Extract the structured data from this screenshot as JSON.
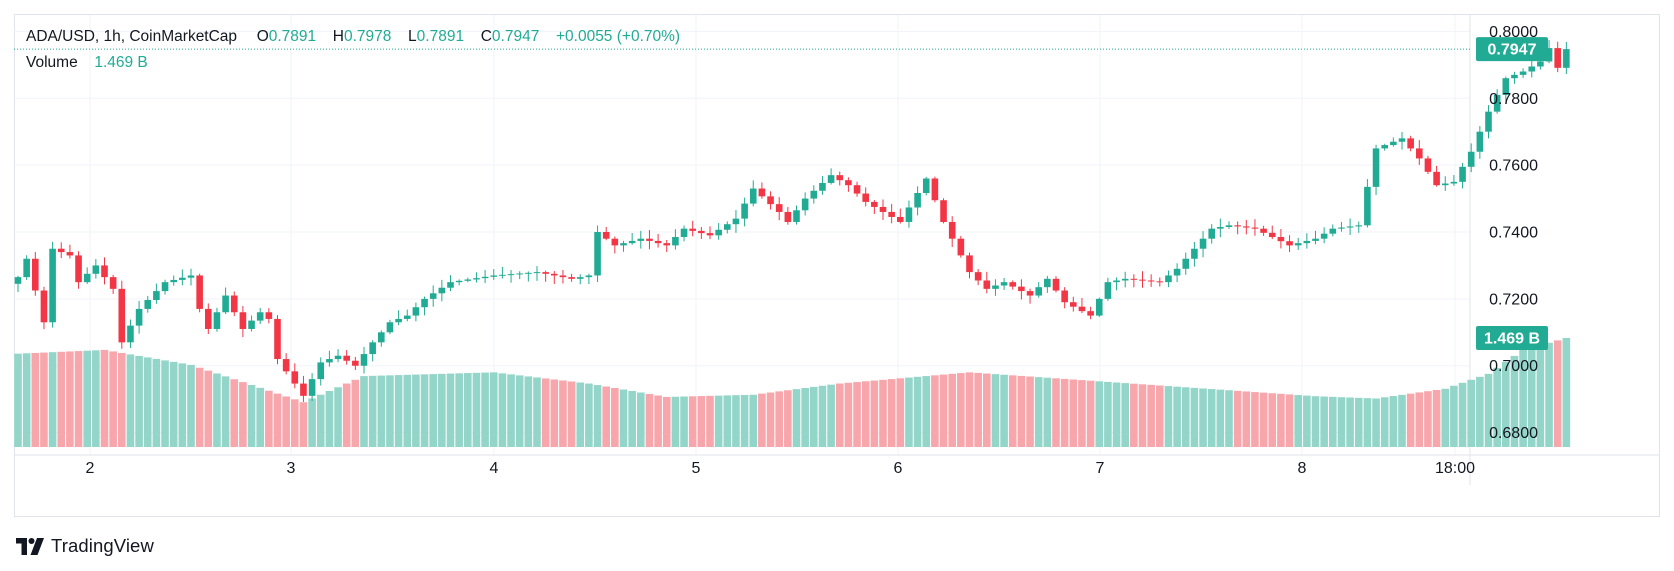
{
  "legend": {
    "symbol": "ADA/USD, 1h, CoinMarketCap",
    "o_label": "O",
    "o_value": "0.7891",
    "h_label": "H",
    "h_value": "0.7978",
    "l_label": "L",
    "l_value": "0.7891",
    "c_label": "C",
    "c_value": "0.7947",
    "change": "+0.0055 (+0.70%)",
    "volume_label": "Volume",
    "volume_value": "1.469 B"
  },
  "colors": {
    "up": "#22ab94",
    "down": "#f23645",
    "vol_up": "#94d5c9",
    "vol_down": "#f7a6ac",
    "grid": "#f0f3fa"
  },
  "brand": {
    "name": "TradingView"
  },
  "chart_data": {
    "type": "candlestick",
    "timeframe": "1h",
    "y_ticks": [
      "0.8000",
      "0.7800",
      "0.7600",
      "0.7400",
      "0.7200",
      "0.7000",
      "0.6800"
    ],
    "ylim": [
      0.6757,
      0.8049
    ],
    "x_ticks": [
      "2",
      "3",
      "4",
      "5",
      "6",
      "7",
      "8",
      "18:00"
    ],
    "last_price_label": "0.7947",
    "last_volume_label": "1.469 B",
    "grid": true,
    "anchors": [
      [
        0,
        0.7265
      ],
      [
        1,
        0.732
      ],
      [
        3,
        0.713
      ],
      [
        4,
        0.735
      ],
      [
        6,
        0.733
      ],
      [
        7,
        0.725
      ],
      [
        9,
        0.73
      ],
      [
        11,
        0.723
      ],
      [
        12,
        0.707
      ],
      [
        14,
        0.717
      ],
      [
        17,
        0.725
      ],
      [
        20,
        0.727
      ],
      [
        21,
        0.717
      ],
      [
        22,
        0.711
      ],
      [
        24,
        0.721
      ],
      [
        26,
        0.711
      ],
      [
        28,
        0.716
      ],
      [
        29,
        0.714
      ],
      [
        30,
        0.702
      ],
      [
        33,
        0.691
      ],
      [
        35,
        0.701
      ],
      [
        37,
        0.703
      ],
      [
        39,
        0.7
      ],
      [
        41,
        0.707
      ],
      [
        43,
        0.713
      ],
      [
        45,
        0.715
      ],
      [
        47,
        0.72
      ],
      [
        50,
        0.725
      ],
      [
        55,
        0.727
      ],
      [
        60,
        0.728
      ],
      [
        64,
        0.726
      ],
      [
        66,
        0.727
      ],
      [
        67,
        0.74
      ],
      [
        69,
        0.736
      ],
      [
        72,
        0.738
      ],
      [
        75,
        0.736
      ],
      [
        77,
        0.741
      ],
      [
        80,
        0.739
      ],
      [
        83,
        0.744
      ],
      [
        85,
        0.753
      ],
      [
        88,
        0.746
      ],
      [
        89,
        0.743
      ],
      [
        91,
        0.75
      ],
      [
        94,
        0.757
      ],
      [
        96,
        0.754
      ],
      [
        98,
        0.749
      ],
      [
        102,
        0.743
      ],
      [
        105,
        0.756
      ],
      [
        107,
        0.743
      ],
      [
        110,
        0.728
      ],
      [
        112,
        0.723
      ],
      [
        114,
        0.725
      ],
      [
        117,
        0.721
      ],
      [
        119,
        0.726
      ],
      [
        121,
        0.719
      ],
      [
        124,
        0.715
      ],
      [
        126,
        0.725
      ],
      [
        128,
        0.726
      ],
      [
        132,
        0.725
      ],
      [
        134,
        0.729
      ],
      [
        136,
        0.735
      ],
      [
        138,
        0.741
      ],
      [
        140,
        0.742
      ],
      [
        143,
        0.741
      ],
      [
        147,
        0.736
      ],
      [
        150,
        0.738
      ],
      [
        152,
        0.741
      ],
      [
        155,
        0.742
      ],
      [
        157,
        0.765
      ],
      [
        160,
        0.768
      ],
      [
        162,
        0.762
      ],
      [
        164,
        0.754
      ],
      [
        166,
        0.755
      ],
      [
        168,
        0.764
      ],
      [
        170,
        0.776
      ],
      [
        172,
        0.786
      ],
      [
        174,
        0.788
      ],
      [
        176,
        0.791
      ],
      [
        177,
        0.795
      ],
      [
        178,
        0.7891
      ],
      [
        179,
        0.7947
      ]
    ],
    "volume_anchors": [
      [
        0,
        1.25
      ],
      [
        10,
        1.3
      ],
      [
        20,
        1.1
      ],
      [
        33,
        0.6
      ],
      [
        40,
        0.95
      ],
      [
        55,
        1.0
      ],
      [
        66,
        0.85
      ],
      [
        75,
        0.67
      ],
      [
        85,
        0.7
      ],
      [
        95,
        0.85
      ],
      [
        110,
        1.0
      ],
      [
        120,
        0.92
      ],
      [
        135,
        0.8
      ],
      [
        150,
        0.68
      ],
      [
        157,
        0.65
      ],
      [
        165,
        0.78
      ],
      [
        170,
        0.98
      ],
      [
        174,
        1.3
      ],
      [
        179,
        1.46
      ]
    ]
  }
}
